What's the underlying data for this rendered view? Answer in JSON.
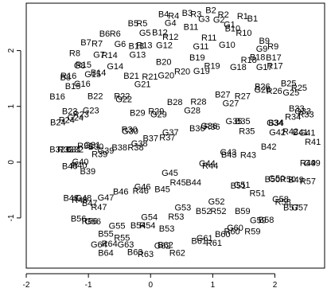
{
  "chart_data": {
    "type": "scatter",
    "title": "",
    "xlabel": "",
    "ylabel": "",
    "xlim": [
      -2.0,
      2.8
    ],
    "ylim": [
      -1.9,
      2.85
    ],
    "grid": false,
    "x_ticks": [
      -2,
      -1,
      0,
      1,
      2
    ],
    "x_tick_labels": [
      "-2",
      "-1",
      "0",
      "1",
      "2"
    ],
    "y_ticks": [
      -1,
      0,
      1,
      2
    ],
    "y_tick_labels": [
      "-1",
      "0",
      "1",
      "2"
    ],
    "points": [
      {
        "label": "R1",
        "x": 1.48,
        "y": 2.62
      },
      {
        "label": "R2",
        "x": 1.17,
        "y": 2.65
      },
      {
        "label": "R3",
        "x": 0.73,
        "y": 2.66
      },
      {
        "label": "R4",
        "x": 0.37,
        "y": 2.63
      },
      {
        "label": "R5",
        "x": -0.14,
        "y": 2.49
      },
      {
        "label": "R6",
        "x": -0.57,
        "y": 2.31
      },
      {
        "label": "R7",
        "x": -0.86,
        "y": 2.13
      },
      {
        "label": "R8",
        "x": -1.22,
        "y": 1.96
      },
      {
        "label": "R9",
        "x": 1.97,
        "y": 2.08
      },
      {
        "label": "R10",
        "x": 1.5,
        "y": 2.32
      },
      {
        "label": "R11",
        "x": 0.94,
        "y": 2.24
      },
      {
        "label": "R12",
        "x": 0.32,
        "y": 2.25
      },
      {
        "label": "R13",
        "x": -0.1,
        "y": 2.1
      },
      {
        "label": "R14",
        "x": -0.66,
        "y": 1.92
      },
      {
        "label": "R15",
        "x": -1.08,
        "y": 1.75
      },
      {
        "label": "R16",
        "x": -1.32,
        "y": 1.55
      },
      {
        "label": "R17",
        "x": 2.0,
        "y": 1.73
      },
      {
        "label": "R18",
        "x": 1.58,
        "y": 1.84
      },
      {
        "label": "R19",
        "x": 0.99,
        "y": 1.73
      },
      {
        "label": "R20",
        "x": 0.51,
        "y": 1.63
      },
      {
        "label": "R21",
        "x": -0.01,
        "y": 1.54
      },
      {
        "label": "R22",
        "x": -0.46,
        "y": 1.19
      },
      {
        "label": "R23",
        "x": -1.12,
        "y": 0.86
      },
      {
        "label": "R24",
        "x": -1.35,
        "y": 0.76
      },
      {
        "label": "R25",
        "x": 2.39,
        "y": 1.34
      },
      {
        "label": "R26",
        "x": 1.99,
        "y": 1.28
      },
      {
        "label": "R27",
        "x": 1.48,
        "y": 1.19
      },
      {
        "label": "R28",
        "x": 0.77,
        "y": 1.09
      },
      {
        "label": "R29",
        "x": 0.09,
        "y": 0.92
      },
      {
        "label": "R30",
        "x": -0.34,
        "y": 0.59
      },
      {
        "label": "R31",
        "x": -1.05,
        "y": 0.3
      },
      {
        "label": "R32",
        "x": -1.37,
        "y": 0.23
      },
      {
        "label": "R33",
        "x": 2.5,
        "y": 0.86
      },
      {
        "label": "R34",
        "x": 2.29,
        "y": 0.82
      },
      {
        "label": "R35",
        "x": 1.55,
        "y": 0.56
      },
      {
        "label": "R36",
        "x": 0.99,
        "y": 0.64
      },
      {
        "label": "R37",
        "x": 0.27,
        "y": 0.45
      },
      {
        "label": "R38",
        "x": -0.24,
        "y": 0.27
      },
      {
        "label": "R39",
        "x": -0.82,
        "y": 0.15
      },
      {
        "label": "R40",
        "x": -1.15,
        "y": -0.05
      },
      {
        "label": "R41",
        "x": 2.61,
        "y": 0.37
      },
      {
        "label": "R42",
        "x": 2.25,
        "y": 0.55
      },
      {
        "label": "R43",
        "x": 1.57,
        "y": 0.13
      },
      {
        "label": "R44",
        "x": 0.96,
        "y": -0.06
      },
      {
        "label": "R45",
        "x": 0.44,
        "y": -0.36
      },
      {
        "label": "R46",
        "x": -0.16,
        "y": -0.51
      },
      {
        "label": "R47",
        "x": -0.83,
        "y": -0.8
      },
      {
        "label": "R48",
        "x": -1.14,
        "y": -0.67
      },
      {
        "label": "R49",
        "x": 2.53,
        "y": -0.01
      },
      {
        "label": "R50",
        "x": 2.21,
        "y": -0.3
      },
      {
        "label": "R51",
        "x": 1.72,
        "y": -0.55
      },
      {
        "label": "R52",
        "x": 1.09,
        "y": -0.87
      },
      {
        "label": "R53",
        "x": 0.41,
        "y": -0.97
      },
      {
        "label": "R54",
        "x": -0.05,
        "y": -1.13
      },
      {
        "label": "R55",
        "x": -0.46,
        "y": -1.35
      },
      {
        "label": "R56",
        "x": -0.98,
        "y": -1.05
      },
      {
        "label": "R57",
        "x": 2.53,
        "y": -0.34
      },
      {
        "label": "R58",
        "x": 2.13,
        "y": -0.71
      },
      {
        "label": "R59",
        "x": 1.64,
        "y": -1.24
      },
      {
        "label": "R60",
        "x": 1.31,
        "y": -1.24
      },
      {
        "label": "R61",
        "x": 1.02,
        "y": -1.44
      },
      {
        "label": "R62",
        "x": 0.43,
        "y": -1.62
      },
      {
        "label": "R63",
        "x": -0.08,
        "y": -1.64
      },
      {
        "label": "R64",
        "x": -0.66,
        "y": -1.46
      },
      {
        "label": "B1",
        "x": 1.64,
        "y": 2.58
      },
      {
        "label": "B2",
        "x": 0.97,
        "y": 2.73
      },
      {
        "label": "B3",
        "x": 0.59,
        "y": 2.68
      },
      {
        "label": "B4",
        "x": 0.21,
        "y": 2.66
      },
      {
        "label": "B5",
        "x": -0.28,
        "y": 2.49
      },
      {
        "label": "B6",
        "x": -0.74,
        "y": 2.31
      },
      {
        "label": "B7",
        "x": -1.04,
        "y": 2.15
      },
      {
        "label": "B8",
        "x": -1.37,
        "y": 1.52
      },
      {
        "label": "B9",
        "x": 1.83,
        "y": 2.18
      },
      {
        "label": "B10",
        "x": 1.32,
        "y": 2.4
      },
      {
        "label": "B11",
        "x": 0.65,
        "y": 2.43
      },
      {
        "label": "B12",
        "x": 0.15,
        "y": 2.33
      },
      {
        "label": "B13",
        "x": -0.23,
        "y": 2.09
      },
      {
        "label": "B14",
        "x": -0.84,
        "y": 1.61
      },
      {
        "label": "B15",
        "x": -1.25,
        "y": 1.37
      },
      {
        "label": "B16",
        "x": -1.5,
        "y": 1.18
      },
      {
        "label": "B17",
        "x": 1.98,
        "y": 1.88
      },
      {
        "label": "B18",
        "x": 1.72,
        "y": 1.89
      },
      {
        "label": "B19",
        "x": 0.75,
        "y": 1.88
      },
      {
        "label": "B20",
        "x": 0.21,
        "y": 1.8
      },
      {
        "label": "B21",
        "x": -0.31,
        "y": 1.55
      },
      {
        "label": "B22",
        "x": -0.89,
        "y": 1.19
      },
      {
        "label": "B23",
        "x": -1.3,
        "y": 0.92
      },
      {
        "label": "B24",
        "x": -1.49,
        "y": 0.72
      },
      {
        "label": "B25",
        "x": 2.22,
        "y": 1.42
      },
      {
        "label": "B26",
        "x": 1.8,
        "y": 1.36
      },
      {
        "label": "B27",
        "x": 1.16,
        "y": 1.22
      },
      {
        "label": "B28",
        "x": 0.39,
        "y": 1.08
      },
      {
        "label": "B29",
        "x": -0.21,
        "y": 0.89
      },
      {
        "label": "B30",
        "x": -0.88,
        "y": 0.28
      },
      {
        "label": "B31",
        "x": -1.24,
        "y": 0.23
      },
      {
        "label": "B32",
        "x": -1.5,
        "y": 0.23
      },
      {
        "label": "B33",
        "x": 2.35,
        "y": 0.97
      },
      {
        "label": "B34",
        "x": 2.02,
        "y": 0.71
      },
      {
        "label": "B35",
        "x": 1.48,
        "y": 0.74
      },
      {
        "label": "B36",
        "x": 0.75,
        "y": 0.61
      },
      {
        "label": "B37",
        "x": 0.0,
        "y": 0.43
      },
      {
        "label": "B38",
        "x": -0.5,
        "y": 0.27
      },
      {
        "label": "B39",
        "x": -1.01,
        "y": -0.16
      },
      {
        "label": "B40",
        "x": -1.3,
        "y": -0.07
      },
      {
        "label": "B41",
        "x": 2.41,
        "y": 0.54
      },
      {
        "label": "B42",
        "x": 1.9,
        "y": 0.28
      },
      {
        "label": "B43",
        "x": 1.26,
        "y": 0.14
      },
      {
        "label": "B44",
        "x": 0.69,
        "y": -0.36
      },
      {
        "label": "B45",
        "x": 0.19,
        "y": -0.48
      },
      {
        "label": "B46",
        "x": -0.48,
        "y": -0.52
      },
      {
        "label": "B47",
        "x": -0.98,
        "y": -0.73
      },
      {
        "label": "B48",
        "x": -1.28,
        "y": -0.64
      },
      {
        "label": "B49",
        "x": 2.34,
        "y": -0.31
      },
      {
        "label": "B50",
        "x": 1.96,
        "y": -0.3
      },
      {
        "label": "B51",
        "x": 1.41,
        "y": -0.42
      },
      {
        "label": "B52",
        "x": 0.85,
        "y": -0.87
      },
      {
        "label": "B53",
        "x": 0.26,
        "y": -1.19
      },
      {
        "label": "B54",
        "x": -0.2,
        "y": -1.13
      },
      {
        "label": "B55",
        "x": -0.72,
        "y": -1.28
      },
      {
        "label": "B56",
        "x": -1.16,
        "y": -1.01
      },
      {
        "label": "B57",
        "x": 2.26,
        "y": -0.81
      },
      {
        "label": "B58",
        "x": 1.86,
        "y": -1.03
      },
      {
        "label": "B59",
        "x": 1.48,
        "y": -0.87
      },
      {
        "label": "B60",
        "x": 1.16,
        "y": -1.29
      },
      {
        "label": "B61",
        "x": 0.78,
        "y": -1.41
      },
      {
        "label": "B62",
        "x": 0.24,
        "y": -1.48
      },
      {
        "label": "B63",
        "x": -0.25,
        "y": -1.61
      },
      {
        "label": "B64",
        "x": -0.72,
        "y": -1.62
      },
      {
        "label": "G1",
        "x": 1.27,
        "y": 2.47
      },
      {
        "label": "G2",
        "x": 1.1,
        "y": 2.56
      },
      {
        "label": "G3",
        "x": 0.86,
        "y": 2.57
      },
      {
        "label": "G4",
        "x": 0.32,
        "y": 2.5
      },
      {
        "label": "G5",
        "x": -0.09,
        "y": 2.32
      },
      {
        "label": "G6",
        "x": -0.49,
        "y": 2.12
      },
      {
        "label": "G7",
        "x": -0.83,
        "y": 1.93
      },
      {
        "label": "G8",
        "x": -1.14,
        "y": 1.74
      },
      {
        "label": "G9",
        "x": 1.79,
        "y": 2.04
      },
      {
        "label": "G10",
        "x": 1.23,
        "y": 2.11
      },
      {
        "label": "G11",
        "x": 0.81,
        "y": 2.08
      },
      {
        "label": "G12",
        "x": 0.22,
        "y": 2.1
      },
      {
        "label": "G13",
        "x": -0.21,
        "y": 1.93
      },
      {
        "label": "G14",
        "x": -0.57,
        "y": 1.72
      },
      {
        "label": "G15",
        "x": -0.93,
        "y": 1.58
      },
      {
        "label": "G16",
        "x": -1.1,
        "y": 1.41
      },
      {
        "label": "G17",
        "x": 1.83,
        "y": 1.71
      },
      {
        "label": "G18",
        "x": 1.41,
        "y": 1.71
      },
      {
        "label": "G19",
        "x": 0.82,
        "y": 1.64
      },
      {
        "label": "G20",
        "x": 0.25,
        "y": 1.56
      },
      {
        "label": "G21",
        "x": -0.13,
        "y": 1.4
      },
      {
        "label": "G22",
        "x": -0.43,
        "y": 1.13
      },
      {
        "label": "G23",
        "x": -0.96,
        "y": 0.93
      },
      {
        "label": "G24",
        "x": -1.21,
        "y": 0.8
      },
      {
        "label": "G25",
        "x": 2.26,
        "y": 1.25
      },
      {
        "label": "G26",
        "x": 1.8,
        "y": 1.3
      },
      {
        "label": "G27",
        "x": 1.29,
        "y": 1.06
      },
      {
        "label": "G28",
        "x": 0.67,
        "y": 0.93
      },
      {
        "label": "G29",
        "x": 0.13,
        "y": 0.86
      },
      {
        "label": "G30",
        "x": -0.33,
        "y": 0.56
      },
      {
        "label": "G31",
        "x": -0.94,
        "y": 0.31
      },
      {
        "label": "G32",
        "x": -1.21,
        "y": 0.23
      },
      {
        "label": "G33",
        "x": 2.45,
        "y": 0.92
      },
      {
        "label": "G34",
        "x": 2.0,
        "y": 0.71
      },
      {
        "label": "G35",
        "x": 1.34,
        "y": 0.74
      },
      {
        "label": "G36",
        "x": 0.94,
        "y": 0.65
      },
      {
        "label": "G37",
        "x": 0.32,
        "y": 0.54
      },
      {
        "label": "G38",
        "x": -0.18,
        "y": 0.34
      },
      {
        "label": "G39",
        "x": -0.72,
        "y": 0.21
      },
      {
        "label": "G40",
        "x": -1.13,
        "y": 0.01
      },
      {
        "label": "G41",
        "x": 2.52,
        "y": 0.53
      },
      {
        "label": "G42",
        "x": 2.04,
        "y": 0.54
      },
      {
        "label": "G43",
        "x": 1.25,
        "y": 0.18
      },
      {
        "label": "G44",
        "x": 0.91,
        "y": -0.02
      },
      {
        "label": "G45",
        "x": 0.31,
        "y": -0.19
      },
      {
        "label": "G46",
        "x": -0.13,
        "y": -0.44
      },
      {
        "label": "G47",
        "x": -0.72,
        "y": -0.63
      },
      {
        "label": "G48",
        "x": -1.08,
        "y": -0.64
      },
      {
        "label": "G49",
        "x": 2.6,
        "y": -0.01
      },
      {
        "label": "G50",
        "x": 2.03,
        "y": -0.29
      },
      {
        "label": "G51",
        "x": 1.47,
        "y": -0.4
      },
      {
        "label": "G52",
        "x": 1.06,
        "y": -0.7
      },
      {
        "label": "G53",
        "x": 0.52,
        "y": -0.81
      },
      {
        "label": "G54",
        "x": -0.02,
        "y": -0.98
      },
      {
        "label": "G55",
        "x": -0.54,
        "y": -1.14
      },
      {
        "label": "G56",
        "x": -0.93,
        "y": -1.06
      },
      {
        "label": "G57",
        "x": 2.4,
        "y": -0.81
      },
      {
        "label": "G58",
        "x": 2.09,
        "y": -0.66
      },
      {
        "label": "G59",
        "x": 1.73,
        "y": -1.04
      },
      {
        "label": "G60",
        "x": 1.36,
        "y": -1.17
      },
      {
        "label": "G61",
        "x": 0.87,
        "y": -1.36
      },
      {
        "label": "G62",
        "x": 0.19,
        "y": -1.49
      },
      {
        "label": "G63",
        "x": -0.4,
        "y": -1.47
      },
      {
        "label": "G64",
        "x": -0.83,
        "y": -1.47
      }
    ]
  }
}
